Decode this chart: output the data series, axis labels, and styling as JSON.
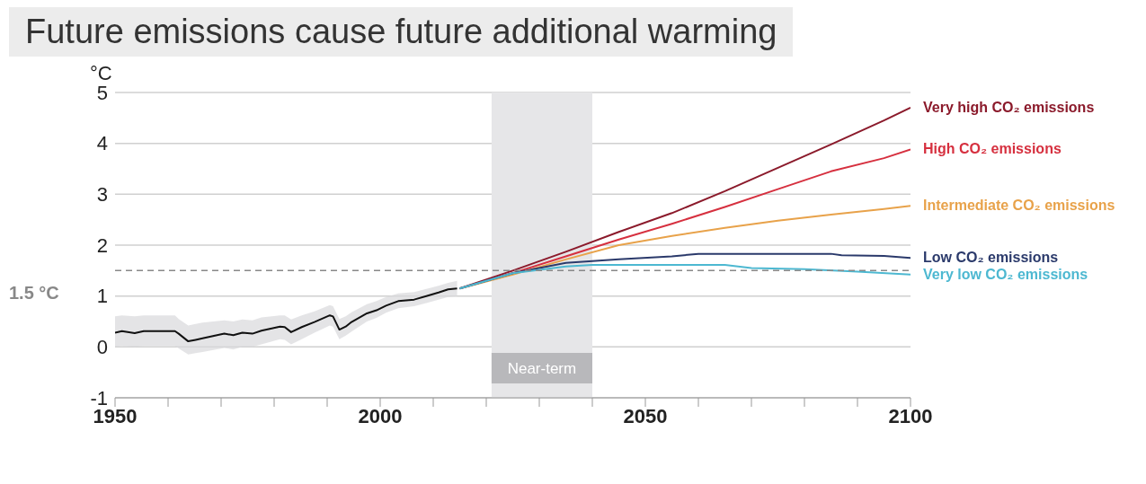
{
  "chart_data": {
    "type": "line",
    "title": "Future emissions cause future additional warming",
    "ylabel": "°C",
    "xlim": [
      1950,
      2100
    ],
    "xticks": [
      1950,
      {
        "value": 1960,
        "label": null
      },
      {
        "value": 1970,
        "label": null
      },
      {
        "value": 1980,
        "label": null
      },
      {
        "value": 1990,
        "label": null
      },
      2000,
      {
        "value": 2010,
        "label": null
      },
      {
        "value": 2020,
        "label": null
      },
      {
        "value": 2030,
        "label": null
      },
      {
        "value": 2040,
        "label": null
      },
      2050,
      {
        "value": 2060,
        "label": null
      },
      {
        "value": 2070,
        "label": null
      },
      {
        "value": 2080,
        "label": null
      },
      {
        "value": 2090,
        "label": null
      },
      2100
    ],
    "ylim": [
      -1,
      5
    ],
    "yticks": [
      -1,
      0,
      1,
      2,
      3,
      4,
      5
    ],
    "grid": "y",
    "line_style": "solid",
    "marker": "none",
    "ref_lines": [
      {
        "axis": "y",
        "value": 1.5,
        "label": "1.5 °C",
        "color": "#888888",
        "line_style": "dashed"
      }
    ],
    "bands": [
      {
        "axis": "x",
        "from": 2021,
        "to": 2040,
        "label": "Near-term",
        "color": "#e6e6e8"
      }
    ],
    "series": [
      {
        "color": "#111111",
        "x": [
          1950,
          1951.3,
          1953.7,
          1955.4,
          1961.3,
          1962,
          1963.8,
          1965.2,
          1966.5,
          1970.6,
          1972.3,
          1974,
          1975.9,
          1977.6,
          1981.1,
          1982,
          1983.2,
          1985.2,
          1987.6,
          1990.5,
          1991.1,
          1992.3,
          1993.5,
          1994.6,
          1997.5,
          1999.3,
          2001.1,
          2003.4,
          2006.4,
          2008.7,
          2011,
          2012.8,
          2014.5
        ],
        "values": [
          0.28,
          0.31,
          0.27,
          0.31,
          0.31,
          0.26,
          0.11,
          0.14,
          0.17,
          0.26,
          0.23,
          0.28,
          0.26,
          0.32,
          0.4,
          0.39,
          0.29,
          0.39,
          0.49,
          0.62,
          0.6,
          0.34,
          0.4,
          0.49,
          0.66,
          0.72,
          0.81,
          0.9,
          0.93,
          1.0,
          1.07,
          1.13,
          1.15
        ],
        "lower": [
          0.0,
          0.02,
          0.0,
          0.02,
          0.02,
          -0.03,
          -0.15,
          -0.12,
          -0.1,
          -0.02,
          -0.05,
          0.0,
          0.0,
          0.05,
          0.15,
          0.14,
          0.05,
          0.15,
          0.28,
          0.42,
          0.4,
          0.15,
          0.22,
          0.3,
          0.5,
          0.57,
          0.67,
          0.76,
          0.8,
          0.86,
          0.93,
          0.98,
          1.0
        ],
        "upper": [
          0.6,
          0.62,
          0.6,
          0.62,
          0.62,
          0.55,
          0.42,
          0.45,
          0.48,
          0.52,
          0.5,
          0.54,
          0.52,
          0.58,
          0.62,
          0.62,
          0.54,
          0.62,
          0.7,
          0.82,
          0.8,
          0.55,
          0.6,
          0.68,
          0.84,
          0.9,
          0.98,
          1.05,
          1.08,
          1.14,
          1.2,
          1.26,
          1.3
        ]
      },
      {
        "name": "Very high CO₂ emissions",
        "color": "#8b1a2b",
        "x": [
          2015,
          2025,
          2035,
          2045,
          2055,
          2065,
          2075,
          2085,
          2095,
          2100
        ],
        "values": [
          1.15,
          1.5,
          1.87,
          2.26,
          2.63,
          3.06,
          3.52,
          3.98,
          4.45,
          4.7
        ]
      },
      {
        "name": "High CO₂ emissions",
        "color": "#d6303f",
        "x": [
          2015,
          2025,
          2035,
          2045,
          2055,
          2065,
          2075,
          2085,
          2095,
          2100
        ],
        "values": [
          1.15,
          1.45,
          1.78,
          2.11,
          2.42,
          2.75,
          3.1,
          3.45,
          3.71,
          3.88
        ]
      },
      {
        "name": "Intermediate CO₂ emissions",
        "color": "#e8a24a",
        "x": [
          2015,
          2025,
          2035,
          2045,
          2055,
          2065,
          2075,
          2085,
          2095,
          2100
        ],
        "values": [
          1.15,
          1.42,
          1.72,
          2.0,
          2.18,
          2.34,
          2.48,
          2.6,
          2.71,
          2.77
        ]
      },
      {
        "name": "Low CO₂ emissions",
        "color": "#2b3a6b",
        "x": [
          2015,
          2025,
          2035,
          2045,
          2055,
          2060,
          2085,
          2087,
          2095,
          2100
        ],
        "values": [
          1.15,
          1.45,
          1.65,
          1.72,
          1.78,
          1.83,
          1.83,
          1.8,
          1.79,
          1.75
        ]
      },
      {
        "name": "Very low CO₂ emissions",
        "color": "#4db8d1",
        "x": [
          2015,
          2025,
          2035,
          2040,
          2065,
          2070,
          2080,
          2090,
          2100
        ],
        "values": [
          1.15,
          1.45,
          1.58,
          1.61,
          1.61,
          1.55,
          1.53,
          1.48,
          1.42
        ]
      }
    ]
  }
}
